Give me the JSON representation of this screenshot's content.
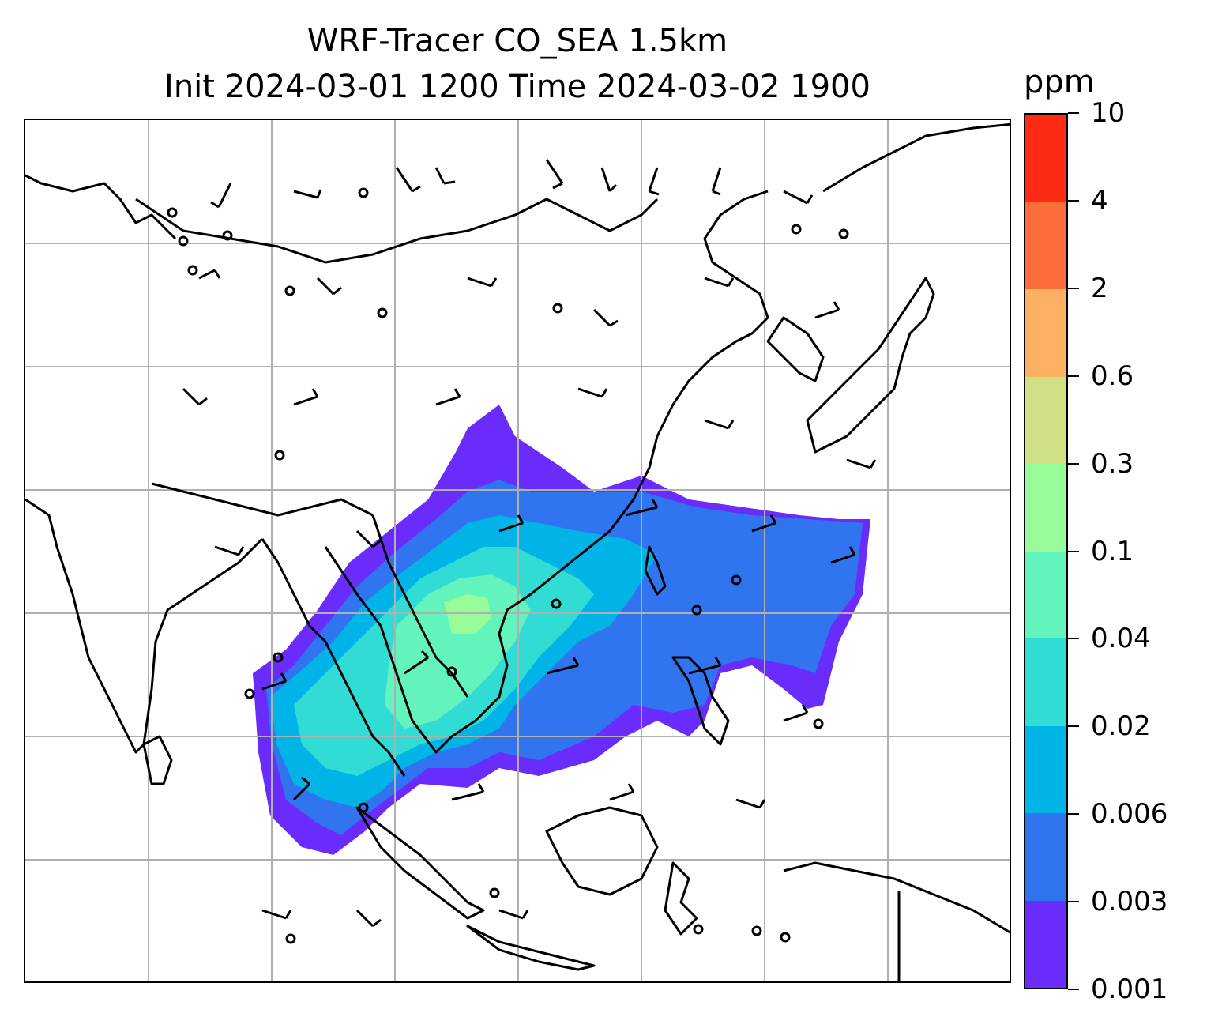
{
  "title": {
    "line1": "WRF-Tracer CO_SEA 1.5km",
    "line2": "Init 2024-03-01 1200 Time 2024-03-02 1900"
  },
  "colorbar": {
    "units": "ppm",
    "levels": [
      "0.001",
      "0.003",
      "0.006",
      "0.02",
      "0.04",
      "0.1",
      "0.3",
      "0.6",
      "2",
      "4",
      "10"
    ],
    "colors": [
      "#6a2cfb",
      "#3074f0",
      "#00b4e8",
      "#30dcd4",
      "#62f4bc",
      "#98fc98",
      "#d0e084",
      "#fcb062",
      "#fb6e3c",
      "#ff2a14"
    ]
  },
  "map": {
    "gridline_color": "#b0b0b0",
    "coastline_color": "#000000",
    "field": "CO tracer concentration",
    "overlay": "wind barbs"
  }
}
